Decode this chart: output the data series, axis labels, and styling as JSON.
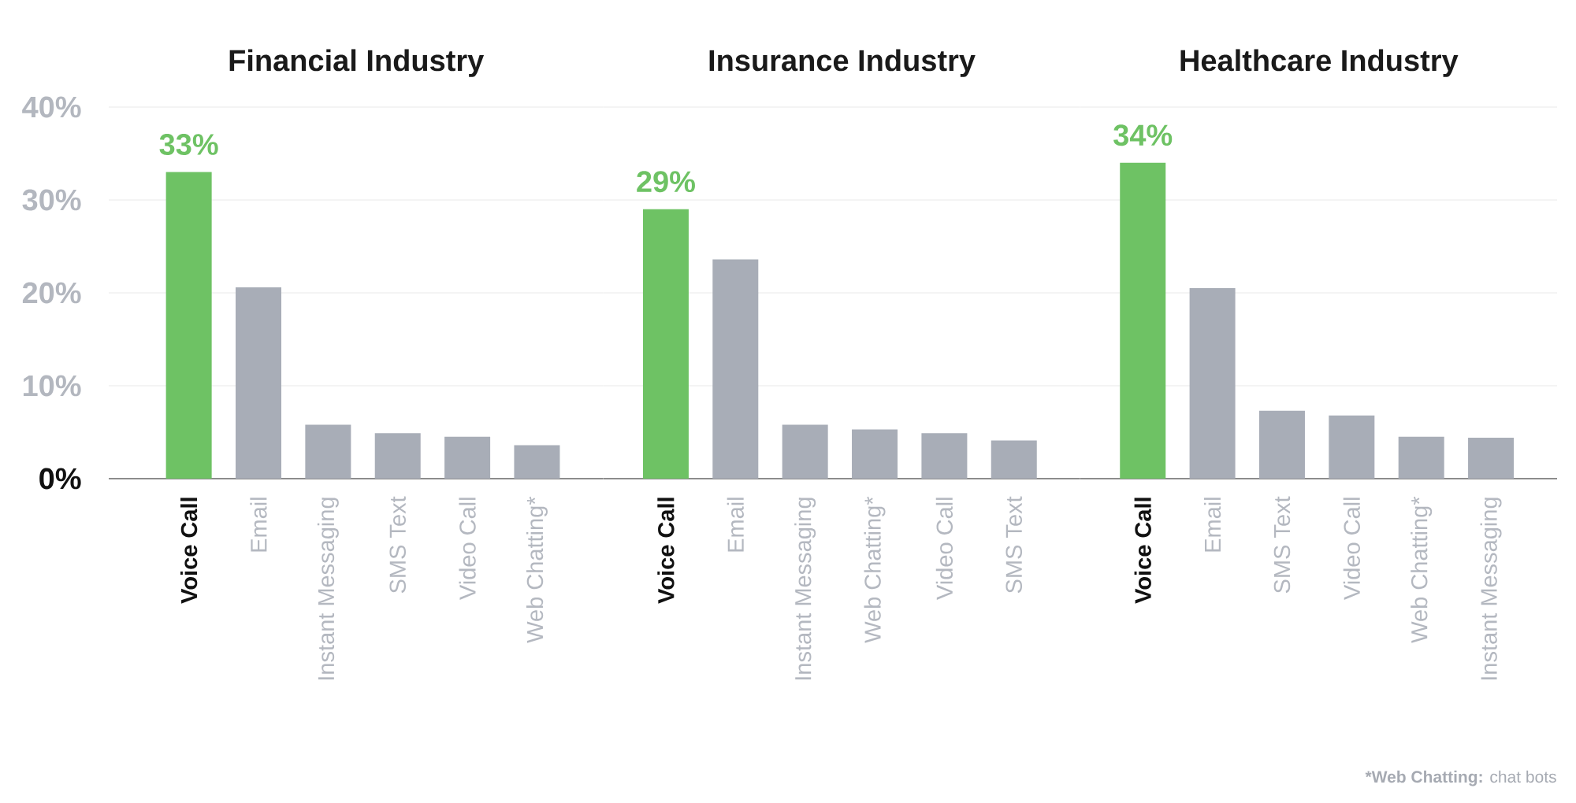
{
  "chart_data": [
    {
      "type": "bar",
      "title": "Financial Industry",
      "categories": [
        "Voice Call",
        "Email",
        "Instant Messaging",
        "SMS Text",
        "Video Call",
        "Web Chatting*"
      ],
      "values": [
        33,
        20.6,
        5.8,
        4.9,
        4.5,
        3.6
      ],
      "colors": [
        "#6ec264",
        "#a8adb7",
        "#a8adb7",
        "#a8adb7",
        "#a8adb7",
        "#a8adb7"
      ],
      "value_labels": [
        "33%",
        null,
        null,
        null,
        null,
        null
      ],
      "ylim": [
        0,
        40
      ],
      "yticks": [
        {
          "value": 0,
          "label": "0%"
        },
        {
          "value": 10,
          "label": "10%"
        },
        {
          "value": 20,
          "label": "20%"
        },
        {
          "value": 30,
          "label": "30%"
        },
        {
          "value": 40,
          "label": "40%"
        }
      ],
      "grid": "y"
    },
    {
      "type": "bar",
      "title": "Insurance Industry",
      "categories": [
        "Voice Call",
        "Email",
        "Instant Messaging",
        "Web Chatting*",
        "Video Call",
        "SMS Text"
      ],
      "values": [
        29,
        23.6,
        5.8,
        5.3,
        4.9,
        4.1
      ],
      "colors": [
        "#6ec264",
        "#a8adb7",
        "#a8adb7",
        "#a8adb7",
        "#a8adb7",
        "#a8adb7"
      ],
      "value_labels": [
        "29%",
        null,
        null,
        null,
        null,
        null
      ],
      "ylim": [
        0,
        40
      ],
      "yticks": [
        0,
        10,
        20,
        30,
        40
      ],
      "grid": "y",
      "tick_labels": "x"
    },
    {
      "type": "bar",
      "title": "Healthcare Industry",
      "categories": [
        "Voice Call",
        "Email",
        "SMS Text",
        "Video Call",
        "Web Chatting*",
        "Instant Messaging"
      ],
      "values": [
        34,
        20.5,
        7.3,
        6.8,
        4.5,
        4.4
      ],
      "colors": [
        "#6ec264",
        "#a8adb7",
        "#a8adb7",
        "#a8adb7",
        "#a8adb7",
        "#a8adb7"
      ],
      "value_labels": [
        "34%",
        null,
        null,
        null,
        null,
        null
      ],
      "ylim": [
        0,
        40
      ],
      "yticks": [
        0,
        10,
        20,
        30,
        40
      ],
      "grid": "y",
      "tick_labels": "x",
      "annotations": [
        "***Web Chatting:** chat bots"
      ]
    }
  ]
}
